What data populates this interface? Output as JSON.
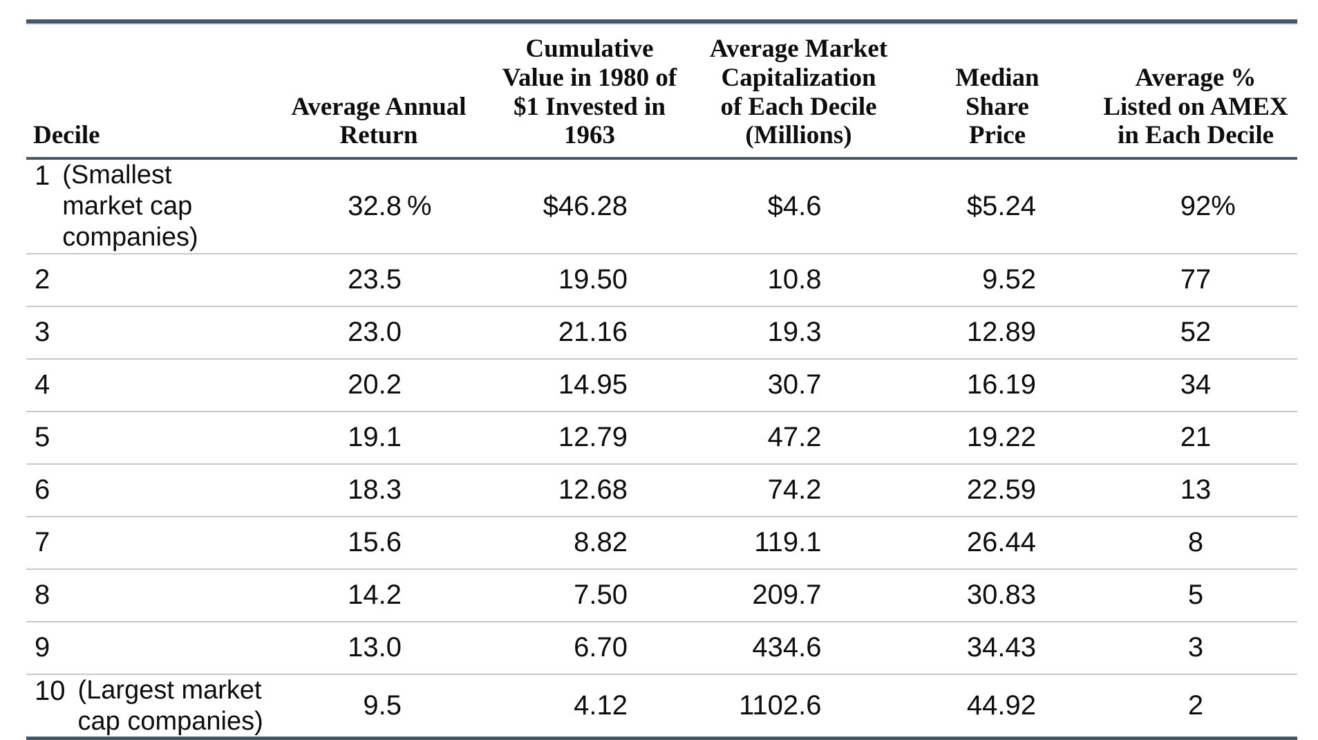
{
  "colors": {
    "rule_dark": "#46566a",
    "rule_light": "#cfe0ef",
    "row_divider": "#c8c8c8",
    "text": "#0d0d0d"
  },
  "table": {
    "columns": [
      {
        "label": "Decile"
      },
      {
        "label": "Average Annual\nReturn"
      },
      {
        "label": "Cumulative\nValue in 1980 of\n$1 Invested in\n1963"
      },
      {
        "label": "Average Market\nCapitalization\nof Each Decile\n(Millions)"
      },
      {
        "label": "Median\nShare\nPrice"
      },
      {
        "label": "Average %\nListed on AMEX\nin Each Decile"
      }
    ],
    "rows": [
      {
        "decile": "1",
        "note": "(Smallest market cap companies)",
        "ret": "32.8",
        "ret_suffix": "%",
        "cum": "$46.28",
        "mkt": "$4.6",
        "med": "$5.24",
        "amex": "92",
        "amex_suffix": "%"
      },
      {
        "decile": "2",
        "note": "",
        "ret": "23.5",
        "ret_suffix": "",
        "cum": "19.50",
        "mkt": "10.8",
        "med": "9.52",
        "amex": "77",
        "amex_suffix": ""
      },
      {
        "decile": "3",
        "note": "",
        "ret": "23.0",
        "ret_suffix": "",
        "cum": "21.16",
        "mkt": "19.3",
        "med": "12.89",
        "amex": "52",
        "amex_suffix": ""
      },
      {
        "decile": "4",
        "note": "",
        "ret": "20.2",
        "ret_suffix": "",
        "cum": "14.95",
        "mkt": "30.7",
        "med": "16.19",
        "amex": "34",
        "amex_suffix": ""
      },
      {
        "decile": "5",
        "note": "",
        "ret": "19.1",
        "ret_suffix": "",
        "cum": "12.79",
        "mkt": "47.2",
        "med": "19.22",
        "amex": "21",
        "amex_suffix": ""
      },
      {
        "decile": "6",
        "note": "",
        "ret": "18.3",
        "ret_suffix": "",
        "cum": "12.68",
        "mkt": "74.2",
        "med": "22.59",
        "amex": "13",
        "amex_suffix": ""
      },
      {
        "decile": "7",
        "note": "",
        "ret": "15.6",
        "ret_suffix": "",
        "cum": "8.82",
        "mkt": "119.1",
        "med": "26.44",
        "amex": "8",
        "amex_suffix": ""
      },
      {
        "decile": "8",
        "note": "",
        "ret": "14.2",
        "ret_suffix": "",
        "cum": "7.50",
        "mkt": "209.7",
        "med": "30.83",
        "amex": "5",
        "amex_suffix": ""
      },
      {
        "decile": "9",
        "note": "",
        "ret": "13.0",
        "ret_suffix": "",
        "cum": "6.70",
        "mkt": "434.6",
        "med": "34.43",
        "amex": "3",
        "amex_suffix": ""
      },
      {
        "decile": "10",
        "note": "(Largest market cap companies)",
        "ret": "9.5",
        "ret_suffix": "",
        "cum": "4.12",
        "mkt": "1102.6",
        "med": "44.92",
        "amex": "2",
        "amex_suffix": ""
      }
    ]
  },
  "chart_data": {
    "type": "table",
    "title": "",
    "columns": [
      "Decile",
      "Average Annual Return",
      "Cumulative Value in 1980 of $1 Invested in 1963",
      "Average Market Capitalization of Each Decile (Millions)",
      "Median Share Price",
      "Average % Listed on AMEX in Each Decile"
    ],
    "rows": [
      [
        "1 (Smallest market cap companies)",
        "32.8%",
        "$46.28",
        "$4.6",
        "$5.24",
        "92%"
      ],
      [
        "2",
        "23.5",
        "19.50",
        "10.8",
        "9.52",
        "77"
      ],
      [
        "3",
        "23.0",
        "21.16",
        "19.3",
        "12.89",
        "52"
      ],
      [
        "4",
        "20.2",
        "14.95",
        "30.7",
        "16.19",
        "34"
      ],
      [
        "5",
        "19.1",
        "12.79",
        "47.2",
        "19.22",
        "21"
      ],
      [
        "6",
        "18.3",
        "12.68",
        "74.2",
        "22.59",
        "13"
      ],
      [
        "7",
        "15.6",
        "8.82",
        "119.1",
        "26.44",
        "8"
      ],
      [
        "8",
        "14.2",
        "7.50",
        "209.7",
        "30.83",
        "5"
      ],
      [
        "9",
        "13.0",
        "6.70",
        "434.6",
        "34.43",
        "3"
      ],
      [
        "10 (Largest market cap companies)",
        "9.5",
        "4.12",
        "1102.6",
        "44.92",
        "2"
      ]
    ]
  }
}
